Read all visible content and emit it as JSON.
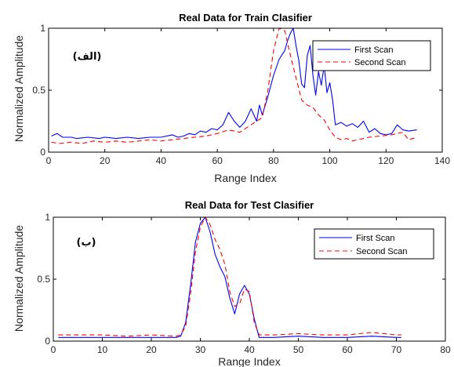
{
  "colors": {
    "first_scan": "#0000ff",
    "second_scan": "#ff0000"
  },
  "chart_data": [
    {
      "type": "line",
      "title": "Real Data for Train Clasifier",
      "xlabel": "Range Index",
      "ylabel": "Normalized Amplitude",
      "xlim": [
        0,
        140
      ],
      "ylim": [
        0,
        1
      ],
      "xticks": [
        "0",
        "20",
        "40",
        "60",
        "80",
        "100",
        "120",
        "140"
      ],
      "yticks": [
        "0",
        "0.5",
        "1"
      ],
      "grid": false,
      "legend_position": "top-right",
      "annotation": "(الف)",
      "series": [
        {
          "name": "First Scan",
          "style": "solid",
          "x": [
            1,
            3,
            5,
            8,
            10,
            14,
            18,
            20,
            24,
            28,
            32,
            36,
            40,
            44,
            46,
            48,
            50,
            52,
            54,
            56,
            58,
            60,
            62,
            64,
            66,
            68,
            70,
            72,
            74,
            75,
            76,
            78,
            80,
            82,
            84,
            85,
            86,
            87,
            88,
            89,
            90,
            91,
            92,
            93,
            94,
            95,
            96,
            97,
            98,
            99,
            100,
            101,
            102,
            104,
            106,
            108,
            110,
            112,
            114,
            116,
            118,
            120,
            122,
            124,
            126,
            128,
            131
          ],
          "y": [
            0.13,
            0.15,
            0.12,
            0.12,
            0.11,
            0.12,
            0.11,
            0.12,
            0.11,
            0.12,
            0.11,
            0.12,
            0.12,
            0.14,
            0.12,
            0.13,
            0.15,
            0.14,
            0.17,
            0.16,
            0.19,
            0.18,
            0.22,
            0.32,
            0.25,
            0.2,
            0.25,
            0.35,
            0.25,
            0.38,
            0.3,
            0.45,
            0.62,
            0.75,
            0.82,
            0.9,
            0.96,
            1.0,
            0.86,
            0.74,
            0.55,
            0.52,
            0.78,
            0.86,
            0.62,
            0.46,
            0.65,
            0.54,
            0.7,
            0.48,
            0.56,
            0.42,
            0.22,
            0.24,
            0.21,
            0.23,
            0.2,
            0.25,
            0.16,
            0.19,
            0.15,
            0.14,
            0.15,
            0.22,
            0.18,
            0.17,
            0.18
          ]
        },
        {
          "name": "Second Scan",
          "style": "dashed",
          "x": [
            1,
            4,
            8,
            12,
            16,
            20,
            24,
            28,
            32,
            36,
            40,
            44,
            48,
            52,
            56,
            60,
            64,
            68,
            72,
            76,
            78,
            80,
            82,
            84,
            85,
            86,
            88,
            90,
            92,
            94,
            96,
            98,
            100,
            102,
            104,
            106,
            108,
            110,
            114,
            118,
            122,
            126,
            128,
            131
          ],
          "y": [
            0.08,
            0.07,
            0.08,
            0.07,
            0.09,
            0.08,
            0.09,
            0.08,
            0.09,
            0.1,
            0.09,
            0.1,
            0.11,
            0.12,
            0.13,
            0.15,
            0.18,
            0.16,
            0.22,
            0.28,
            0.5,
            0.82,
            1.0,
            0.98,
            0.88,
            0.78,
            0.6,
            0.42,
            0.38,
            0.36,
            0.3,
            0.26,
            0.18,
            0.12,
            0.1,
            0.11,
            0.09,
            0.1,
            0.12,
            0.13,
            0.14,
            0.16,
            0.1,
            0.12
          ]
        }
      ]
    },
    {
      "type": "line",
      "title": "Real Data for Test Clasifier",
      "xlabel": "Range Index",
      "ylabel": "Normalized Amplitude",
      "xlim": [
        0,
        80
      ],
      "ylim": [
        0,
        1
      ],
      "xticks": [
        "0",
        "10",
        "20",
        "30",
        "40",
        "50",
        "60",
        "70",
        "80"
      ],
      "yticks": [
        "0",
        "0.5",
        "1"
      ],
      "grid": false,
      "legend_position": "top-right",
      "annotation": "(ب)",
      "series": [
        {
          "name": "First Scan",
          "style": "solid",
          "x": [
            1,
            5,
            10,
            15,
            20,
            25,
            26,
            27,
            28,
            29,
            30,
            31,
            32,
            33,
            34,
            35,
            36,
            37,
            38,
            39,
            40,
            41,
            42,
            45,
            50,
            55,
            60,
            65,
            70,
            71
          ],
          "y": [
            0.03,
            0.03,
            0.03,
            0.03,
            0.03,
            0.03,
            0.04,
            0.15,
            0.45,
            0.8,
            0.95,
            1.0,
            0.88,
            0.7,
            0.6,
            0.52,
            0.35,
            0.22,
            0.38,
            0.45,
            0.38,
            0.18,
            0.03,
            0.03,
            0.04,
            0.03,
            0.03,
            0.04,
            0.03,
            0.03
          ]
        },
        {
          "name": "Second Scan",
          "style": "dashed",
          "x": [
            1,
            5,
            10,
            15,
            20,
            25,
            26,
            27,
            28,
            29,
            30,
            31,
            32,
            33,
            34,
            35,
            36,
            37,
            38,
            39,
            40,
            41,
            42,
            45,
            50,
            55,
            60,
            65,
            70,
            71
          ],
          "y": [
            0.05,
            0.05,
            0.05,
            0.04,
            0.05,
            0.04,
            0.05,
            0.12,
            0.38,
            0.72,
            0.92,
            1.0,
            0.94,
            0.82,
            0.74,
            0.62,
            0.4,
            0.28,
            0.3,
            0.42,
            0.4,
            0.15,
            0.05,
            0.05,
            0.06,
            0.05,
            0.05,
            0.07,
            0.05,
            0.05
          ]
        }
      ]
    }
  ]
}
